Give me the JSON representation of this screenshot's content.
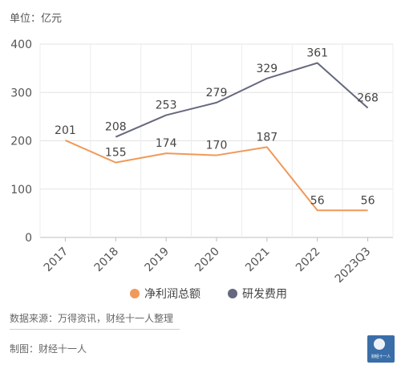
{
  "unit": "单位：亿元",
  "source": "数据来源：万得资讯，财经十一人整理",
  "maker": "制图：财经十一人",
  "logo_text": "财经十一人",
  "chart_data": {
    "type": "line",
    "categories": [
      "2017",
      "2018",
      "2019",
      "2020",
      "2021",
      "2022",
      "2023Q3"
    ],
    "ylim": [
      0,
      400
    ],
    "yticks": [
      0,
      100,
      200,
      300,
      400
    ],
    "grid": true,
    "legend_position": "bottom",
    "series": [
      {
        "name": "净利润总额",
        "color": "#f0995a",
        "values": [
          201,
          155,
          174,
          170,
          187,
          56,
          56
        ]
      },
      {
        "name": "研发费用",
        "color": "#65687e",
        "values": [
          null,
          208,
          253,
          279,
          329,
          361,
          268
        ]
      }
    ]
  }
}
